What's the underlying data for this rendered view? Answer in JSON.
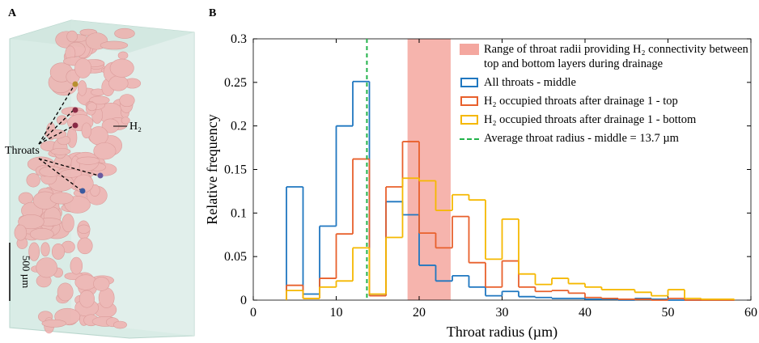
{
  "panel_a": {
    "label": "A",
    "annotations": [
      "Throats",
      "H₂",
      "500 µm"
    ]
  },
  "chart_data": {
    "type": "step-histogram",
    "panel_label": "B",
    "xlabel": "Throat radius (µm)",
    "ylabel": "Relative frequency",
    "xlim": [
      0,
      60
    ],
    "ylim": [
      0,
      0.3
    ],
    "xticks": [
      0,
      10,
      20,
      30,
      40,
      50,
      60
    ],
    "yticks": [
      0,
      0.05,
      0.1,
      0.15,
      0.2,
      0.25,
      0.3
    ],
    "bins": [
      4,
      6,
      8,
      10,
      12,
      14,
      16,
      18,
      20,
      22,
      24,
      26,
      28,
      30,
      32,
      34,
      36,
      38,
      40,
      42,
      44,
      46,
      48,
      50,
      52,
      54,
      56,
      58
    ],
    "shaded_range": {
      "name": "Range of throat radii providing H₂ connectivity between top and bottom layers during drainage",
      "range": [
        18.6,
        23.8
      ],
      "color": "#f4a79f"
    },
    "series": [
      {
        "name": "All throats - middle",
        "color": "#1f77c0",
        "values": [
          0.13,
          0.007,
          0.085,
          0.2,
          0.251,
          0.005,
          0.113,
          0.098,
          0.04,
          0.022,
          0.028,
          0.015,
          0.005,
          0.01,
          0.004,
          0.003,
          0.002,
          0.002,
          0.001,
          0.001,
          0,
          0.002,
          0.001,
          0,
          0,
          0,
          0
        ]
      },
      {
        "name": "H₂ occupied throats after drainage 1 - top",
        "color": "#e8602c",
        "values": [
          0.017,
          0.002,
          0.025,
          0.076,
          0.162,
          0.005,
          0.13,
          0.182,
          0.077,
          0.06,
          0.096,
          0.043,
          0.015,
          0.045,
          0.015,
          0.01,
          0.011,
          0.008,
          0.003,
          0.002,
          0.001,
          0.001,
          0,
          0.002,
          0,
          0,
          0
        ]
      },
      {
        "name": "H₂ occupied throats after drainage 1 - bottom",
        "color": "#f5b800",
        "values": [
          0.011,
          0.002,
          0.015,
          0.022,
          0.06,
          0.007,
          0.072,
          0.14,
          0.137,
          0.103,
          0.121,
          0.115,
          0.047,
          0.093,
          0.03,
          0.018,
          0.025,
          0.019,
          0.015,
          0.012,
          0.012,
          0.009,
          0.005,
          0.012,
          0.002,
          0.001,
          0.001
        ]
      }
    ],
    "vline": {
      "name": "Average throat radius - middle = 13.7 µm",
      "x": 13.7,
      "color": "#22b34a"
    }
  }
}
